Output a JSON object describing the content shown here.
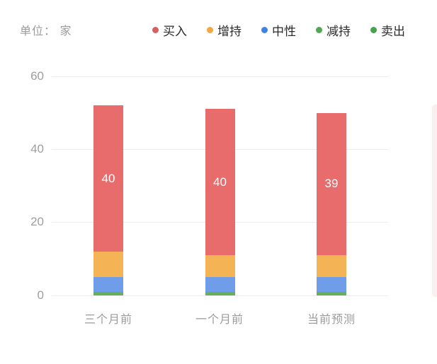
{
  "meta": {
    "unit_label": "单位： 家"
  },
  "legend": [
    {
      "label": "买入",
      "color": "#d75f5f"
    },
    {
      "label": "增持",
      "color": "#f0a843"
    },
    {
      "label": "中性",
      "color": "#3e82e8"
    },
    {
      "label": "减持",
      "color": "#52a654"
    },
    {
      "label": "卖出",
      "color": "#46a34b"
    }
  ],
  "chart_data": {
    "type": "bar",
    "stacked": true,
    "title": "",
    "xlabel": "",
    "ylabel": "单位：家",
    "categories": [
      "三个月前",
      "一个月前",
      "当前预测"
    ],
    "series": [
      {
        "name": "买入",
        "color": "#e86c6c",
        "values": [
          40,
          40,
          39
        ],
        "show_label": true
      },
      {
        "name": "增持",
        "color": "#f4b455",
        "values": [
          7,
          6,
          6
        ],
        "show_label": false
      },
      {
        "name": "中性",
        "color": "#6f9de9",
        "values": [
          4,
          4,
          4
        ],
        "show_label": false
      },
      {
        "name": "减持",
        "color": "#68ae5c",
        "values": [
          1,
          1,
          1
        ],
        "show_label": false
      },
      {
        "name": "卖出",
        "color": "#46a34b",
        "values": [
          0,
          0,
          0
        ],
        "show_label": false
      }
    ],
    "totals": [
      52,
      51,
      50
    ],
    "yticks": [
      60,
      40,
      20,
      0
    ],
    "ylim": [
      0,
      60
    ],
    "grid": true,
    "legend_position": "top"
  }
}
